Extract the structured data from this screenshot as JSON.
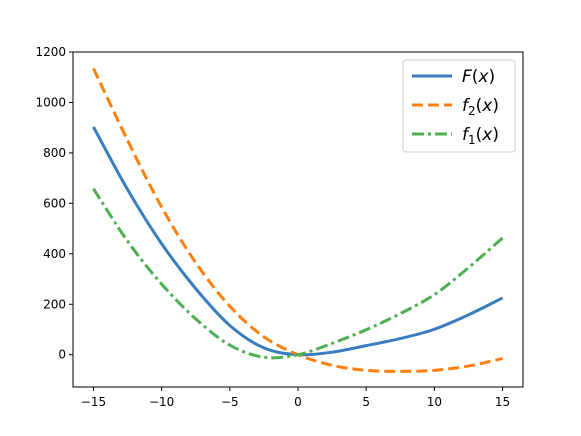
{
  "chart_data": {
    "type": "line",
    "title": "",
    "xlabel": "",
    "ylabel": "",
    "xlim": [
      -16.5,
      16.5
    ],
    "ylim": [
      -128,
      1200
    ],
    "xticks": [
      -15,
      -10,
      -5,
      0,
      5,
      10,
      15
    ],
    "yticks": [
      0,
      200,
      400,
      600,
      800,
      1000,
      1200
    ],
    "xtick_labels": [
      "−15",
      "−10",
      "−5",
      "0",
      "5",
      "10",
      "15"
    ],
    "ytick_labels": [
      "0",
      "200",
      "400",
      "600",
      "800",
      "1000",
      "1200"
    ],
    "grid": false,
    "legend_position": "top-right",
    "x": [
      -15,
      -12.5,
      -10,
      -7.5,
      -5,
      -2.5,
      0,
      2.5,
      5,
      7.5,
      10,
      12.5,
      15
    ],
    "series": [
      {
        "name": "F(x)",
        "name_main": "F",
        "name_sub": "",
        "color": "#3a7dbf",
        "dash": "solid",
        "values": [
          903,
          655,
          440,
          262,
          116,
          27,
          0,
          10,
          36,
          64,
          101,
          158,
          225
        ]
      },
      {
        "name": "f2(x)",
        "name_main": "f",
        "name_sub": "2",
        "color": "#ff7f0e",
        "dash": "dashed",
        "values": [
          1135,
          850,
          585,
          365,
          192,
          71,
          0,
          -42,
          -62,
          -66,
          -62,
          -45,
          -15
        ]
      },
      {
        "name": "f1(x)",
        "name_main": "f",
        "name_sub": "1",
        "color": "#4caf50",
        "dash": "dashdot",
        "values": [
          658,
          450,
          280,
          142,
          38,
          -10,
          0,
          45,
          99,
          163,
          238,
          345,
          463
        ]
      }
    ]
  }
}
